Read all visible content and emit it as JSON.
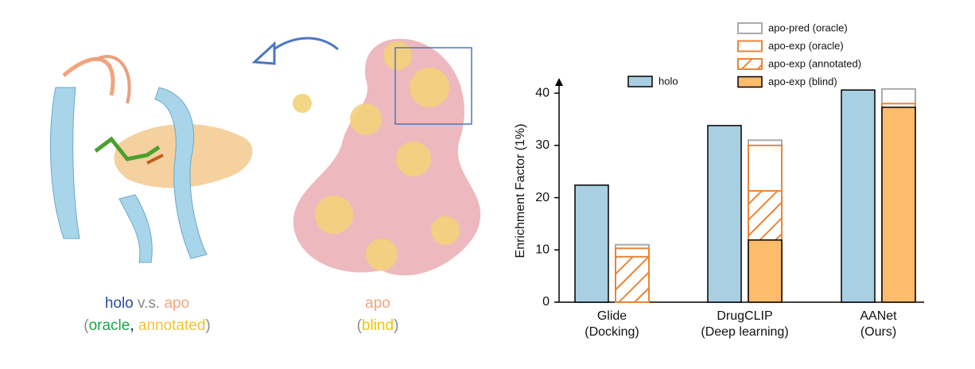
{
  "chart_data": {
    "type": "bar",
    "y_label": "Enrichment Factor (1%)",
    "categories": [
      "Glide",
      "DrugCLIP",
      "AANet"
    ],
    "category_notes": [
      "(Docking)",
      "(Deep learning)",
      "(Ours)"
    ],
    "series": [
      {
        "name": "holo",
        "color": "#a8cfe2",
        "style": "fill",
        "values": [
          22.4,
          33.8,
          40.6
        ]
      },
      {
        "name": "apo-pred (oracle)",
        "color": "#aaaaaa",
        "style": "outline",
        "values": [
          11.0,
          31.0,
          40.8
        ]
      },
      {
        "name": "apo-exp (oracle)",
        "color": "#e8853a",
        "style": "outline",
        "values": [
          10.3,
          30.0,
          38.0
        ]
      },
      {
        "name": "apo-exp (annotated)",
        "color": "#e8853a",
        "style": "hatch",
        "values": [
          8.7,
          21.3,
          null
        ]
      },
      {
        "name": "apo-exp (blind)",
        "color": "#fdbb6c",
        "style": "fill",
        "values": [
          null,
          11.9,
          37.3
        ]
      }
    ],
    "ylim": [
      0,
      42
    ],
    "yticks": [
      0,
      10,
      20,
      30,
      40
    ]
  },
  "captions": [
    {
      "lines": [
        [
          {
            "text": "holo",
            "color": "#2b4c9b"
          },
          {
            "text": " v.s. ",
            "color": "#8a8a8a"
          },
          {
            "text": "apo",
            "color": "#f2a47c"
          }
        ],
        [
          {
            "text": "(",
            "color": "#8a8a8a"
          },
          {
            "text": "oracle",
            "color": "#1aa64a"
          },
          {
            "text": ", ",
            "color": "#111111"
          },
          {
            "text": "annotated",
            "color": "#f2c23a"
          },
          {
            "text": ")",
            "color": "#8a8a8a"
          }
        ]
      ]
    },
    {
      "lines": [
        [
          {
            "text": "apo",
            "color": "#f2a47c"
          }
        ],
        [
          {
            "text": "(",
            "color": "#8a8a8a"
          },
          {
            "text": "blind",
            "color": "#f5c400"
          },
          {
            "text": ")",
            "color": "#8a8a8a"
          }
        ]
      ]
    }
  ]
}
